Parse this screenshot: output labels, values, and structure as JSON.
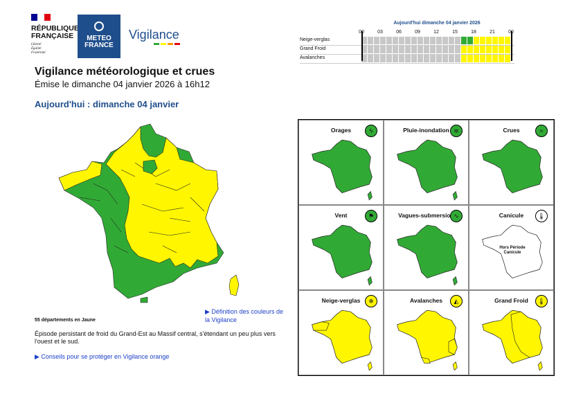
{
  "header": {
    "republique": [
      "RÉPUBLIQUE",
      "FRANÇAISE"
    ],
    "motto": [
      "Liberté",
      "Égalité",
      "Fraternité"
    ],
    "meteo_france": [
      "METEO",
      "FRANCE"
    ],
    "vigilance_word": "Vigilance"
  },
  "timeline": {
    "title": "Aujourd'hui dimanche 04 janvier 2026",
    "hours": [
      "00",
      "03",
      "06",
      "09",
      "12",
      "15",
      "18",
      "21",
      "00"
    ],
    "rows": [
      {
        "label": "Neige-verglas",
        "segments": [
          "grey",
          "grey",
          "grey",
          "grey",
          "grey",
          "grey",
          "grey",
          "grey",
          "grey",
          "grey",
          "grey",
          "grey",
          "grey",
          "grey",
          "grey",
          "grey",
          "green",
          "green",
          "yellow",
          "yellow",
          "yellow",
          "yellow",
          "yellow",
          "yellow"
        ]
      },
      {
        "label": "Grand Froid",
        "segments": [
          "grey",
          "grey",
          "grey",
          "grey",
          "grey",
          "grey",
          "grey",
          "grey",
          "grey",
          "grey",
          "grey",
          "grey",
          "grey",
          "grey",
          "grey",
          "grey",
          "yellow",
          "yellow",
          "yellow",
          "yellow",
          "yellow",
          "yellow",
          "yellow",
          "yellow"
        ]
      },
      {
        "label": "Avalanches",
        "segments": [
          "grey",
          "grey",
          "grey",
          "grey",
          "grey",
          "grey",
          "grey",
          "grey",
          "grey",
          "grey",
          "grey",
          "grey",
          "grey",
          "grey",
          "grey",
          "grey",
          "yellow",
          "yellow",
          "yellow",
          "yellow",
          "yellow",
          "yellow",
          "yellow",
          "yellow"
        ]
      }
    ],
    "colors": {
      "grey": "#c8c8c8",
      "green": "#31aa35",
      "yellow": "#fff600"
    }
  },
  "page": {
    "title": "Vigilance météorologique et crues",
    "emission": "Émise le dimanche 04 janvier 2026 à 16h12",
    "day_heading": "Aujourd'hui : dimanche 04 janvier"
  },
  "main_map": {
    "yellow_count_text": "55 départements en Jaune",
    "definition_link": "▶ Définition des couleurs de la Vigilance",
    "episode_text": "Épisode persistant de froid du Grand-Est au Massif central, s'étendant un peu plus vers l'ouest et le sud.",
    "conseils_link": "▶ Conseils pour se protéger en Vigilance orange"
  },
  "phenomena": [
    {
      "name": "Orages",
      "level": "green",
      "icon": "lightning-icon",
      "glyph": "ϟ"
    },
    {
      "name": "Pluie-inondation",
      "level": "green",
      "icon": "rain-flood-icon",
      "glyph": "≋"
    },
    {
      "name": "Crues",
      "level": "green",
      "icon": "flood-icon",
      "glyph": "≈"
    },
    {
      "name": "Vent",
      "level": "green",
      "icon": "wind-icon",
      "glyph": "⚑"
    },
    {
      "name": "Vagues-submersion",
      "level": "green",
      "icon": "wave-icon",
      "glyph": "∿"
    },
    {
      "name": "Canicule",
      "level": "none",
      "icon": "thermometer-icon",
      "glyph": "🌡",
      "note": "Hors Période Canicule"
    },
    {
      "name": "Neige-verglas",
      "level": "yellow",
      "icon": "snowflake-icon",
      "glyph": "❄"
    },
    {
      "name": "Avalanches",
      "level": "yellow",
      "icon": "avalanche-icon",
      "glyph": "◭"
    },
    {
      "name": "Grand Froid",
      "level": "yellow",
      "icon": "cold-thermometer-icon",
      "glyph": "🌡"
    }
  ],
  "colors": {
    "vig_green": "#31aa35",
    "vig_yellow": "#fff600",
    "navy": "#1f4e8c",
    "link_blue": "#1a3ec8"
  }
}
